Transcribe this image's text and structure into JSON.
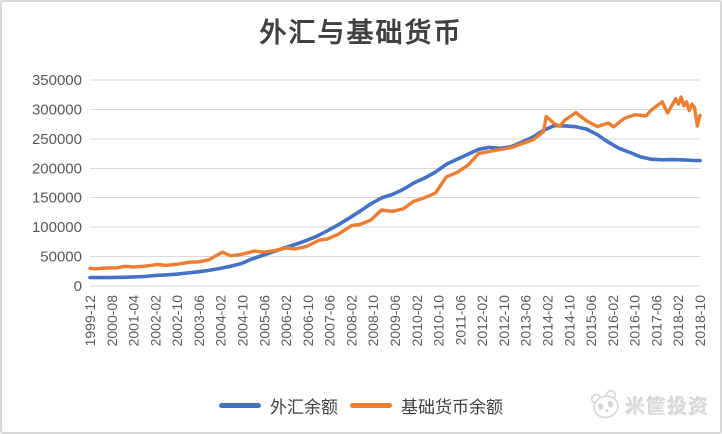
{
  "title": "外汇与基础货币",
  "watermark": {
    "text": "米筐投资",
    "icon": "panda-icon",
    "color": "#dcdcdc"
  },
  "legend": [
    {
      "label": "外汇余额",
      "color": "#4472C4"
    },
    {
      "label": "基础货币余额",
      "color": "#ED7D31"
    }
  ],
  "colors": {
    "series_blue": "#4472C4",
    "series_orange": "#ED7D31",
    "gridline": "#d9d9d9",
    "axis_text": "#595959",
    "title_text": "#404040",
    "background": "#ffffff",
    "frame_border": "#d8d8d8"
  },
  "chart_data": {
    "type": "line",
    "title": "外汇与基础货币",
    "xlabel": "",
    "ylabel": "",
    "grid": true,
    "legend_position": "bottom",
    "ylim": [
      0,
      350000
    ],
    "y_ticks": [
      0,
      50000,
      100000,
      150000,
      200000,
      250000,
      300000,
      350000
    ],
    "x_tick_labels": [
      "1999-12",
      "2000-08",
      "2001-04",
      "2002-02",
      "2002-10",
      "2003-06",
      "2004-02",
      "2004-10",
      "2005-06",
      "2006-02",
      "2006-10",
      "2007-06",
      "2008-02",
      "2008-10",
      "2009-06",
      "2010-02",
      "2010-10",
      "2011-06",
      "2012-02",
      "2012-10",
      "2013-06",
      "2014-02",
      "2014-10",
      "2015-06",
      "2016-02",
      "2016-10",
      "2017-06",
      "2018-02",
      "2018-10"
    ],
    "x_unit": "months since 1999-12",
    "x_range_months": 226,
    "series": [
      {
        "name": "外汇余额",
        "color": "#4472C4",
        "points": [
          [
            0,
            14500
          ],
          [
            4,
            14200
          ],
          [
            8,
            14400
          ],
          [
            12,
            14800
          ],
          [
            16,
            15300
          ],
          [
            20,
            16200
          ],
          [
            24,
            17900
          ],
          [
            28,
            18800
          ],
          [
            32,
            20000
          ],
          [
            36,
            22100
          ],
          [
            40,
            24200
          ],
          [
            44,
            26500
          ],
          [
            48,
            29800
          ],
          [
            52,
            33500
          ],
          [
            56,
            38000
          ],
          [
            60,
            45900
          ],
          [
            64,
            52000
          ],
          [
            68,
            58500
          ],
          [
            72,
            64500
          ],
          [
            76,
            70500
          ],
          [
            80,
            77000
          ],
          [
            84,
            84400
          ],
          [
            88,
            94000
          ],
          [
            92,
            104000
          ],
          [
            96,
            115200
          ],
          [
            100,
            127000
          ],
          [
            104,
            139500
          ],
          [
            108,
            149600
          ],
          [
            112,
            155500
          ],
          [
            116,
            164000
          ],
          [
            120,
            175200
          ],
          [
            124,
            183500
          ],
          [
            128,
            193500
          ],
          [
            132,
            206800
          ],
          [
            136,
            215500
          ],
          [
            140,
            224000
          ],
          [
            144,
            232300
          ],
          [
            148,
            235500
          ],
          [
            152,
            234000
          ],
          [
            156,
            236700
          ],
          [
            160,
            244500
          ],
          [
            164,
            253000
          ],
          [
            168,
            264300
          ],
          [
            172,
            272500
          ],
          [
            176,
            272000
          ],
          [
            180,
            270700
          ],
          [
            184,
            266500
          ],
          [
            188,
            257000
          ],
          [
            192,
            244500
          ],
          [
            196,
            234000
          ],
          [
            200,
            227000
          ],
          [
            204,
            219400
          ],
          [
            208,
            215500
          ],
          [
            212,
            214500
          ],
          [
            216,
            214800
          ],
          [
            220,
            214200
          ],
          [
            224,
            213200
          ],
          [
            226,
            213000
          ]
        ]
      },
      {
        "name": "基础货币余额",
        "color": "#ED7D31",
        "points": [
          [
            0,
            30000
          ],
          [
            2,
            29300
          ],
          [
            6,
            30500
          ],
          [
            10,
            31000
          ],
          [
            13,
            33500
          ],
          [
            16,
            32200
          ],
          [
            20,
            33500
          ],
          [
            25,
            36500
          ],
          [
            28,
            35200
          ],
          [
            32,
            36800
          ],
          [
            37,
            40500
          ],
          [
            40,
            41000
          ],
          [
            44,
            44500
          ],
          [
            49,
            57500
          ],
          [
            52,
            51500
          ],
          [
            56,
            53500
          ],
          [
            61,
            59500
          ],
          [
            64,
            57500
          ],
          [
            68,
            60000
          ],
          [
            73,
            64500
          ],
          [
            76,
            63000
          ],
          [
            80,
            67000
          ],
          [
            85,
            78000
          ],
          [
            88,
            80000
          ],
          [
            92,
            88000
          ],
          [
            97,
            103000
          ],
          [
            100,
            104500
          ],
          [
            104,
            112000
          ],
          [
            108,
            129200
          ],
          [
            112,
            127000
          ],
          [
            116,
            131000
          ],
          [
            120,
            144000
          ],
          [
            124,
            150000
          ],
          [
            128,
            158000
          ],
          [
            132,
            185300
          ],
          [
            136,
            193000
          ],
          [
            140,
            205000
          ],
          [
            144,
            225300
          ],
          [
            148,
            228500
          ],
          [
            152,
            232000
          ],
          [
            156,
            235000
          ],
          [
            160,
            242000
          ],
          [
            164,
            248000
          ],
          [
            168,
            262000
          ],
          [
            169,
            288000
          ],
          [
            172,
            276000
          ],
          [
            174,
            271500
          ],
          [
            176,
            282000
          ],
          [
            180,
            294600
          ],
          [
            184,
            280500
          ],
          [
            188,
            271000
          ],
          [
            192,
            277000
          ],
          [
            194,
            270500
          ],
          [
            198,
            285000
          ],
          [
            202,
            291000
          ],
          [
            206,
            289000
          ],
          [
            208,
            299000
          ],
          [
            210,
            306000
          ],
          [
            212,
            313000
          ],
          [
            214,
            294000
          ],
          [
            216,
            310000
          ],
          [
            217,
            318000
          ],
          [
            218,
            309000
          ],
          [
            219,
            321000
          ],
          [
            220,
            306000
          ],
          [
            221,
            313000
          ],
          [
            222,
            298000
          ],
          [
            223,
            309000
          ],
          [
            224,
            303000
          ],
          [
            225,
            272000
          ],
          [
            226,
            290000
          ]
        ]
      }
    ]
  }
}
